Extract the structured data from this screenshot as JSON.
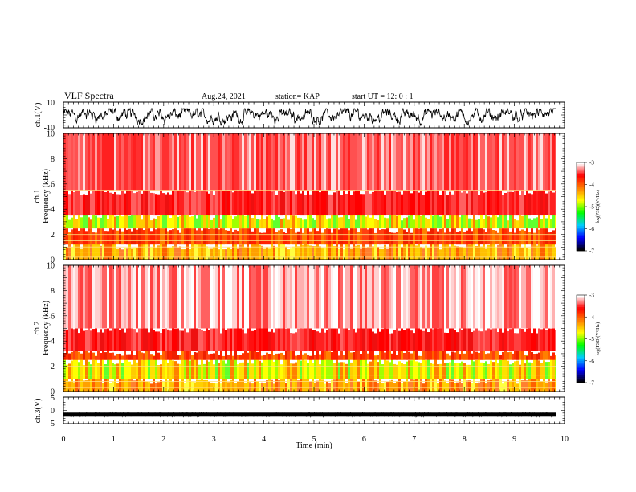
{
  "header": {
    "title": "VLF Spectra",
    "date": "Aug.24, 2021",
    "station": "station= KAP",
    "start": "start UT =  12: 0 : 1"
  },
  "colorbar": {
    "label": "log(PSD)(V²/Hz)",
    "ticks": [
      "-3",
      "-4",
      "-5",
      "-6",
      "-7"
    ],
    "colors": [
      "#000000",
      "#0000ff",
      "#00ccff",
      "#00ff00",
      "#ffff00",
      "#ff8000",
      "#ff0000",
      "#ffffff"
    ]
  },
  "chart_data": [
    {
      "type": "line",
      "name": "ch1-waveform",
      "ylabel": "ch.1(V)",
      "ylim": [
        -10,
        10
      ],
      "ytick_labels": [
        "10",
        "-10"
      ],
      "xlim": [
        0,
        10
      ],
      "data_extent_min": 9.83,
      "noise_band_v": [
        -8,
        5
      ]
    },
    {
      "type": "heatmap",
      "name": "ch1-spectrogram",
      "ylabel": "ch.1\nFrequency  (kHz)",
      "ylim": [
        0,
        10
      ],
      "ytick_labels": [
        "0",
        "2",
        "4",
        "6",
        "8",
        "10"
      ],
      "xlim": [
        0,
        10
      ],
      "data_extent_min": 9.83,
      "bands_khz": [
        {
          "from": 0,
          "to": 1.2,
          "level": "orange-yellow"
        },
        {
          "from": 1.2,
          "to": 2.5,
          "level": "orange-red"
        },
        {
          "from": 2.5,
          "to": 3.5,
          "level": "yellow-green"
        },
        {
          "from": 3.5,
          "to": 5.5,
          "level": "red"
        },
        {
          "from": 5.5,
          "to": 10,
          "level": "red-white"
        }
      ],
      "tone_lines_khz": [
        0.2,
        0.6,
        1.0,
        1.5,
        2.0,
        2.5,
        5.5
      ]
    },
    {
      "type": "heatmap",
      "name": "ch2-spectrogram",
      "ylabel": "ch.2\nFrequency  (kHz)",
      "ylim": [
        0,
        10
      ],
      "ytick_labels": [
        "0",
        "2",
        "4",
        "6",
        "8",
        "10"
      ],
      "xlim": [
        0,
        10
      ],
      "data_extent_min": 9.83,
      "bands_khz": [
        {
          "from": 0,
          "to": 1.0,
          "level": "orange-yellow"
        },
        {
          "from": 1.0,
          "to": 2.5,
          "level": "yellow-green"
        },
        {
          "from": 2.5,
          "to": 3.2,
          "level": "orange-red"
        },
        {
          "from": 3.2,
          "to": 5.0,
          "level": "red"
        },
        {
          "from": 5.0,
          "to": 10,
          "level": "white-red"
        }
      ],
      "tone_lines_khz": [
        0.3,
        0.8,
        1.3,
        2.0
      ]
    },
    {
      "type": "line",
      "name": "ch3-waveform",
      "ylabel": "ch.3(V)",
      "ylim": [
        -5,
        5
      ],
      "ytick_labels": [
        "5",
        "0",
        "-5"
      ],
      "xlim": [
        0,
        10
      ],
      "data_extent_min": 9.83,
      "level_v": -1.6
    }
  ],
  "xaxis": {
    "label": "Time  (min)",
    "ticks": [
      "0",
      "1",
      "2",
      "3",
      "4",
      "5",
      "6",
      "7",
      "8",
      "9",
      "10"
    ]
  }
}
